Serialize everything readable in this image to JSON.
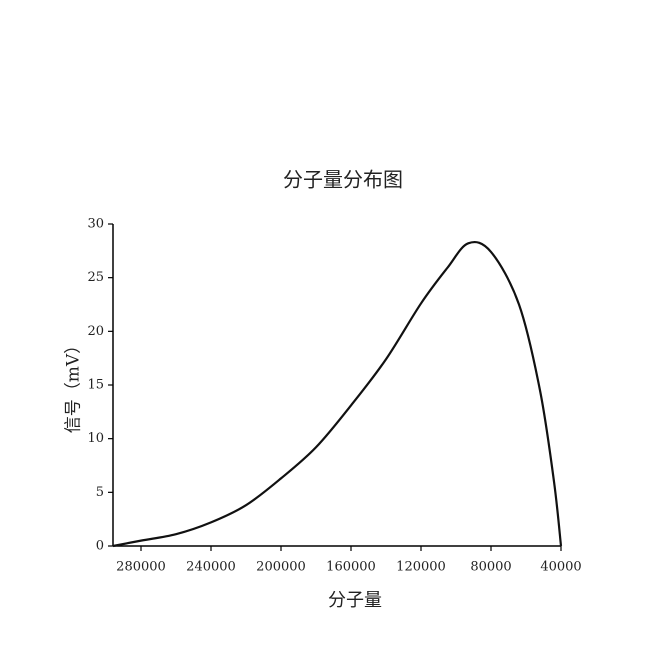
{
  "chart_data": {
    "type": "line",
    "title": "分子量分布图",
    "x_label": "分子量",
    "y_label": "信号（mV）",
    "x": [
      296000,
      280000,
      260000,
      240000,
      220000,
      200000,
      180000,
      160000,
      140000,
      120000,
      105000,
      93000,
      80000,
      64000,
      52000,
      44000,
      40000
    ],
    "series": [
      {
        "color": "#111111",
        "values": [
          0,
          0.5,
          1.1,
          2.2,
          3.8,
          6.3,
          9.2,
          13.1,
          17.4,
          22.6,
          25.9,
          28.2,
          27.4,
          22.5,
          14.5,
          6,
          0
        ]
      }
    ],
    "xlim": [
      296000,
      40000
    ],
    "xticks": [
      280000,
      240000,
      200000,
      160000,
      120000,
      80000,
      40000
    ],
    "ylim": [
      0,
      30
    ],
    "yticks": [
      0,
      5,
      10,
      15,
      20,
      25,
      30
    ]
  }
}
